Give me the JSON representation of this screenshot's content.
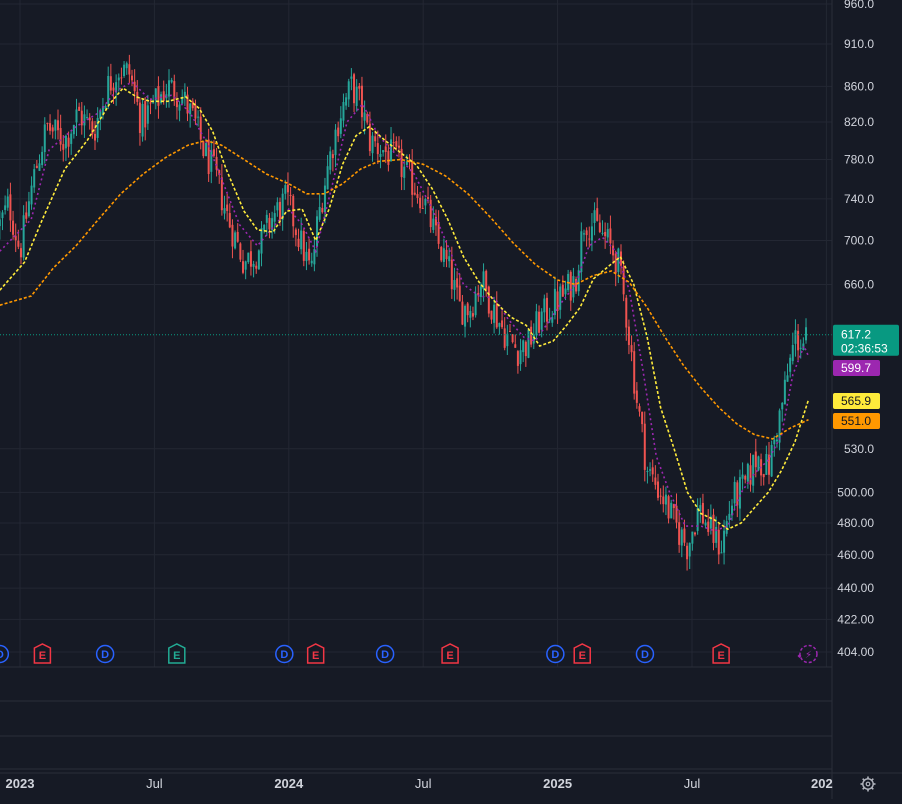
{
  "chart_data": {
    "type": "line",
    "subtype": "candlestick",
    "y_scale": "log",
    "ylim": [
      390,
      965
    ],
    "y_ticks": [
      {
        "value": 960,
        "label": "960.0"
      },
      {
        "value": 910,
        "label": "910.0"
      },
      {
        "value": 860,
        "label": "860.0"
      },
      {
        "value": 820,
        "label": "820.0"
      },
      {
        "value": 780,
        "label": "780.0"
      },
      {
        "value": 740,
        "label": "740.0"
      },
      {
        "value": 700,
        "label": "700.0"
      },
      {
        "value": 660,
        "label": "660.0"
      },
      {
        "value": 530,
        "label": "530.0"
      },
      {
        "value": 500,
        "label": "500.00"
      },
      {
        "value": 480,
        "label": "480.00"
      },
      {
        "value": 460,
        "label": "460.00"
      },
      {
        "value": 440,
        "label": "440.00"
      },
      {
        "value": 422,
        "label": "422.00"
      },
      {
        "value": 404,
        "label": "404.00"
      }
    ],
    "x_ticks": [
      {
        "t": 0.0,
        "label": "2023",
        "bold": true
      },
      {
        "t": 6.0,
        "label": "Jul",
        "bold": false
      },
      {
        "t": 12.0,
        "label": "2024",
        "bold": true
      },
      {
        "t": 18.0,
        "label": "Jul",
        "bold": false
      },
      {
        "t": 24.0,
        "label": "2025",
        "bold": true
      },
      {
        "t": 30.0,
        "label": "Jul",
        "bold": false
      },
      {
        "t": 36.0,
        "label": "202",
        "bold": true
      }
    ],
    "xlim_months": [
      -0.9,
      36.3
    ],
    "price_path": [
      [
        -1.2,
        700
      ],
      [
        -0.5,
        735
      ],
      [
        0.0,
        690
      ],
      [
        0.6,
        760
      ],
      [
        1.2,
        815
      ],
      [
        2.0,
        800
      ],
      [
        2.6,
        830
      ],
      [
        3.3,
        810
      ],
      [
        3.9,
        860
      ],
      [
        4.4,
        880
      ],
      [
        4.9,
        875
      ],
      [
        5.4,
        820
      ],
      [
        6.0,
        840
      ],
      [
        6.6,
        860
      ],
      [
        7.2,
        850
      ],
      [
        7.8,
        820
      ],
      [
        8.2,
        790
      ],
      [
        8.7,
        765
      ],
      [
        9.3,
        720
      ],
      [
        10.0,
        680
      ],
      [
        10.6,
        690
      ],
      [
        11.2,
        720
      ],
      [
        11.9,
        740
      ],
      [
        12.5,
        700
      ],
      [
        13.0,
        670
      ],
      [
        13.3,
        720
      ],
      [
        13.8,
        780
      ],
      [
        14.3,
        830
      ],
      [
        14.8,
        860
      ],
      [
        15.2,
        840
      ],
      [
        15.6,
        800
      ],
      [
        16.2,
        790
      ],
      [
        16.8,
        780
      ],
      [
        17.4,
        760
      ],
      [
        18.0,
        740
      ],
      [
        18.6,
        700
      ],
      [
        19.2,
        670
      ],
      [
        19.6,
        640
      ],
      [
        20.1,
        640
      ],
      [
        20.6,
        665
      ],
      [
        21.1,
        640
      ],
      [
        21.6,
        620
      ],
      [
        22.2,
        605
      ],
      [
        22.7,
        610
      ],
      [
        23.2,
        630
      ],
      [
        23.7,
        640
      ],
      [
        24.2,
        650
      ],
      [
        24.8,
        665
      ],
      [
        25.2,
        720
      ],
      [
        25.6,
        715
      ],
      [
        26.2,
        700
      ],
      [
        26.7,
        680
      ],
      [
        27.1,
        630
      ],
      [
        27.5,
        570
      ],
      [
        28.0,
        515
      ],
      [
        28.6,
        500
      ],
      [
        29.2,
        480
      ],
      [
        29.8,
        465
      ],
      [
        30.3,
        490
      ],
      [
        30.8,
        475
      ],
      [
        31.3,
        465
      ],
      [
        31.8,
        495
      ],
      [
        32.4,
        505
      ],
      [
        32.9,
        525
      ],
      [
        33.4,
        515
      ],
      [
        34.0,
        560
      ],
      [
        34.6,
        615
      ],
      [
        35.0,
        610
      ],
      [
        35.2,
        617.2
      ]
    ],
    "series": [
      {
        "name": "",
        "kind": "ma_fast",
        "style": "dashed",
        "color": "#9c27b0",
        "values": [
          [
            -0.9,
            690
          ],
          [
            0.5,
            720
          ],
          [
            1.3,
            790
          ],
          [
            2.5,
            815
          ],
          [
            3.5,
            830
          ],
          [
            4.3,
            855
          ],
          [
            5.0,
            865
          ],
          [
            5.8,
            845
          ],
          [
            6.8,
            850
          ],
          [
            7.6,
            830
          ],
          [
            8.4,
            795
          ],
          [
            9.0,
            760
          ],
          [
            9.8,
            715
          ],
          [
            10.6,
            695
          ],
          [
            11.4,
            715
          ],
          [
            12.0,
            730
          ],
          [
            12.6,
            715
          ],
          [
            13.2,
            690
          ],
          [
            13.9,
            750
          ],
          [
            14.6,
            820
          ],
          [
            15.3,
            840
          ],
          [
            16.0,
            805
          ],
          [
            16.8,
            785
          ],
          [
            17.6,
            765
          ],
          [
            18.4,
            730
          ],
          [
            19.2,
            690
          ],
          [
            19.8,
            660
          ],
          [
            20.5,
            650
          ],
          [
            21.2,
            648
          ],
          [
            21.8,
            630
          ],
          [
            22.5,
            615
          ],
          [
            23.0,
            612
          ],
          [
            23.6,
            628
          ],
          [
            24.2,
            645
          ],
          [
            24.8,
            660
          ],
          [
            25.4,
            695
          ],
          [
            26.0,
            703
          ],
          [
            26.6,
            690
          ],
          [
            27.2,
            655
          ],
          [
            27.8,
            590
          ],
          [
            28.4,
            525
          ],
          [
            29.0,
            500
          ],
          [
            29.7,
            478
          ],
          [
            30.4,
            478
          ],
          [
            31.0,
            475
          ],
          [
            31.6,
            478
          ],
          [
            32.2,
            500
          ],
          [
            32.8,
            513
          ],
          [
            33.4,
            522
          ],
          [
            34.0,
            540
          ],
          [
            34.5,
            585
          ],
          [
            35.0,
            608
          ],
          [
            35.2,
            599.7
          ]
        ]
      },
      {
        "name": "",
        "kind": "ma_mid",
        "style": "dashed",
        "color": "#ffeb3b",
        "values": [
          [
            -0.9,
            655
          ],
          [
            0.2,
            680
          ],
          [
            1.0,
            720
          ],
          [
            2.0,
            770
          ],
          [
            3.0,
            800
          ],
          [
            4.0,
            840
          ],
          [
            4.6,
            858
          ],
          [
            5.2,
            848
          ],
          [
            5.8,
            843
          ],
          [
            6.6,
            843
          ],
          [
            7.4,
            848
          ],
          [
            8.0,
            835
          ],
          [
            8.6,
            810
          ],
          [
            9.2,
            770
          ],
          [
            10.0,
            728
          ],
          [
            10.6,
            710
          ],
          [
            11.3,
            708
          ],
          [
            11.9,
            728
          ],
          [
            12.6,
            730
          ],
          [
            13.2,
            700
          ],
          [
            13.8,
            730
          ],
          [
            14.4,
            775
          ],
          [
            15.0,
            805
          ],
          [
            15.6,
            815
          ],
          [
            16.3,
            800
          ],
          [
            17.0,
            787
          ],
          [
            17.7,
            774
          ],
          [
            18.4,
            750
          ],
          [
            19.1,
            720
          ],
          [
            19.8,
            685
          ],
          [
            20.5,
            662
          ],
          [
            21.2,
            645
          ],
          [
            21.9,
            632
          ],
          [
            22.6,
            625
          ],
          [
            23.2,
            608
          ],
          [
            23.8,
            612
          ],
          [
            24.4,
            625
          ],
          [
            25.0,
            640
          ],
          [
            25.6,
            665
          ],
          [
            26.2,
            675
          ],
          [
            26.8,
            685
          ],
          [
            27.4,
            660
          ],
          [
            28.0,
            615
          ],
          [
            28.6,
            560
          ],
          [
            29.2,
            530
          ],
          [
            29.8,
            500
          ],
          [
            30.4,
            486
          ],
          [
            31.0,
            482
          ],
          [
            31.6,
            476
          ],
          [
            32.2,
            480
          ],
          [
            32.8,
            490
          ],
          [
            33.4,
            500
          ],
          [
            34.0,
            515
          ],
          [
            34.6,
            535
          ],
          [
            35.2,
            565.9
          ]
        ]
      },
      {
        "name": "",
        "kind": "ma_slow",
        "style": "dashed",
        "color": "#ff9800",
        "values": [
          [
            -0.9,
            642
          ],
          [
            0.5,
            650
          ],
          [
            1.5,
            675
          ],
          [
            2.5,
            695
          ],
          [
            3.5,
            720
          ],
          [
            4.5,
            745
          ],
          [
            5.5,
            765
          ],
          [
            6.5,
            782
          ],
          [
            7.5,
            795
          ],
          [
            8.3,
            800
          ],
          [
            9.0,
            795
          ],
          [
            10.0,
            780
          ],
          [
            11.0,
            765
          ],
          [
            12.0,
            755
          ],
          [
            12.8,
            745
          ],
          [
            13.6,
            745
          ],
          [
            14.4,
            755
          ],
          [
            15.2,
            770
          ],
          [
            16.0,
            778
          ],
          [
            17.0,
            780
          ],
          [
            18.0,
            775
          ],
          [
            19.0,
            763
          ],
          [
            20.0,
            745
          ],
          [
            21.0,
            722
          ],
          [
            22.0,
            698
          ],
          [
            23.0,
            678
          ],
          [
            24.0,
            664
          ],
          [
            24.8,
            660
          ],
          [
            25.6,
            668
          ],
          [
            26.4,
            672
          ],
          [
            27.2,
            662
          ],
          [
            28.0,
            640
          ],
          [
            28.8,
            615
          ],
          [
            29.6,
            593
          ],
          [
            30.4,
            575
          ],
          [
            31.2,
            560
          ],
          [
            32.0,
            548
          ],
          [
            32.8,
            540
          ],
          [
            33.6,
            537
          ],
          [
            34.4,
            545
          ],
          [
            35.2,
            551.0
          ]
        ]
      }
    ],
    "last_price": {
      "value": 617.2,
      "label": "617.2",
      "countdown": "02:36:53",
      "color": "#089981"
    },
    "ma_badges": [
      {
        "value": 599.7,
        "label": "599.7",
        "color": "#9c27b0",
        "text_color": "#ffffff"
      },
      {
        "value": 565.9,
        "label": "565.9",
        "color": "#ffeb3b",
        "text_color": "#131722"
      },
      {
        "value": 551.0,
        "label": "551.0",
        "color": "#ff9800",
        "text_color": "#131722"
      }
    ],
    "events": [
      {
        "t": -0.9,
        "letter": "D",
        "kind": "dividend"
      },
      {
        "t": 1.0,
        "letter": "E",
        "kind": "earnings-red"
      },
      {
        "t": 3.8,
        "letter": "D",
        "kind": "dividend"
      },
      {
        "t": 7.0,
        "letter": "E",
        "kind": "earnings-green"
      },
      {
        "t": 11.8,
        "letter": "D",
        "kind": "dividend"
      },
      {
        "t": 13.2,
        "letter": "E",
        "kind": "earnings-red"
      },
      {
        "t": 16.3,
        "letter": "D",
        "kind": "dividend"
      },
      {
        "t": 19.2,
        "letter": "E",
        "kind": "earnings-red"
      },
      {
        "t": 23.9,
        "letter": "D",
        "kind": "dividend"
      },
      {
        "t": 25.1,
        "letter": "E",
        "kind": "earnings-red"
      },
      {
        "t": 27.9,
        "letter": "D",
        "kind": "dividend"
      },
      {
        "t": 31.3,
        "letter": "E",
        "kind": "earnings-red"
      },
      {
        "t": 35.2,
        "letter": "⚡",
        "kind": "upcoming"
      }
    ],
    "colors": {
      "background": "#161a25",
      "grid": "#232733",
      "axis_text": "#d1d4dc",
      "candle_up": "#26a69a",
      "candle_down": "#ef5350",
      "dividend": "#2962ff",
      "earnings_red": "#f23645",
      "earnings_green": "#22ab94",
      "upcoming": "#9c27b0"
    },
    "grid": true
  },
  "ui": {
    "settings_icon": "gear-icon"
  }
}
